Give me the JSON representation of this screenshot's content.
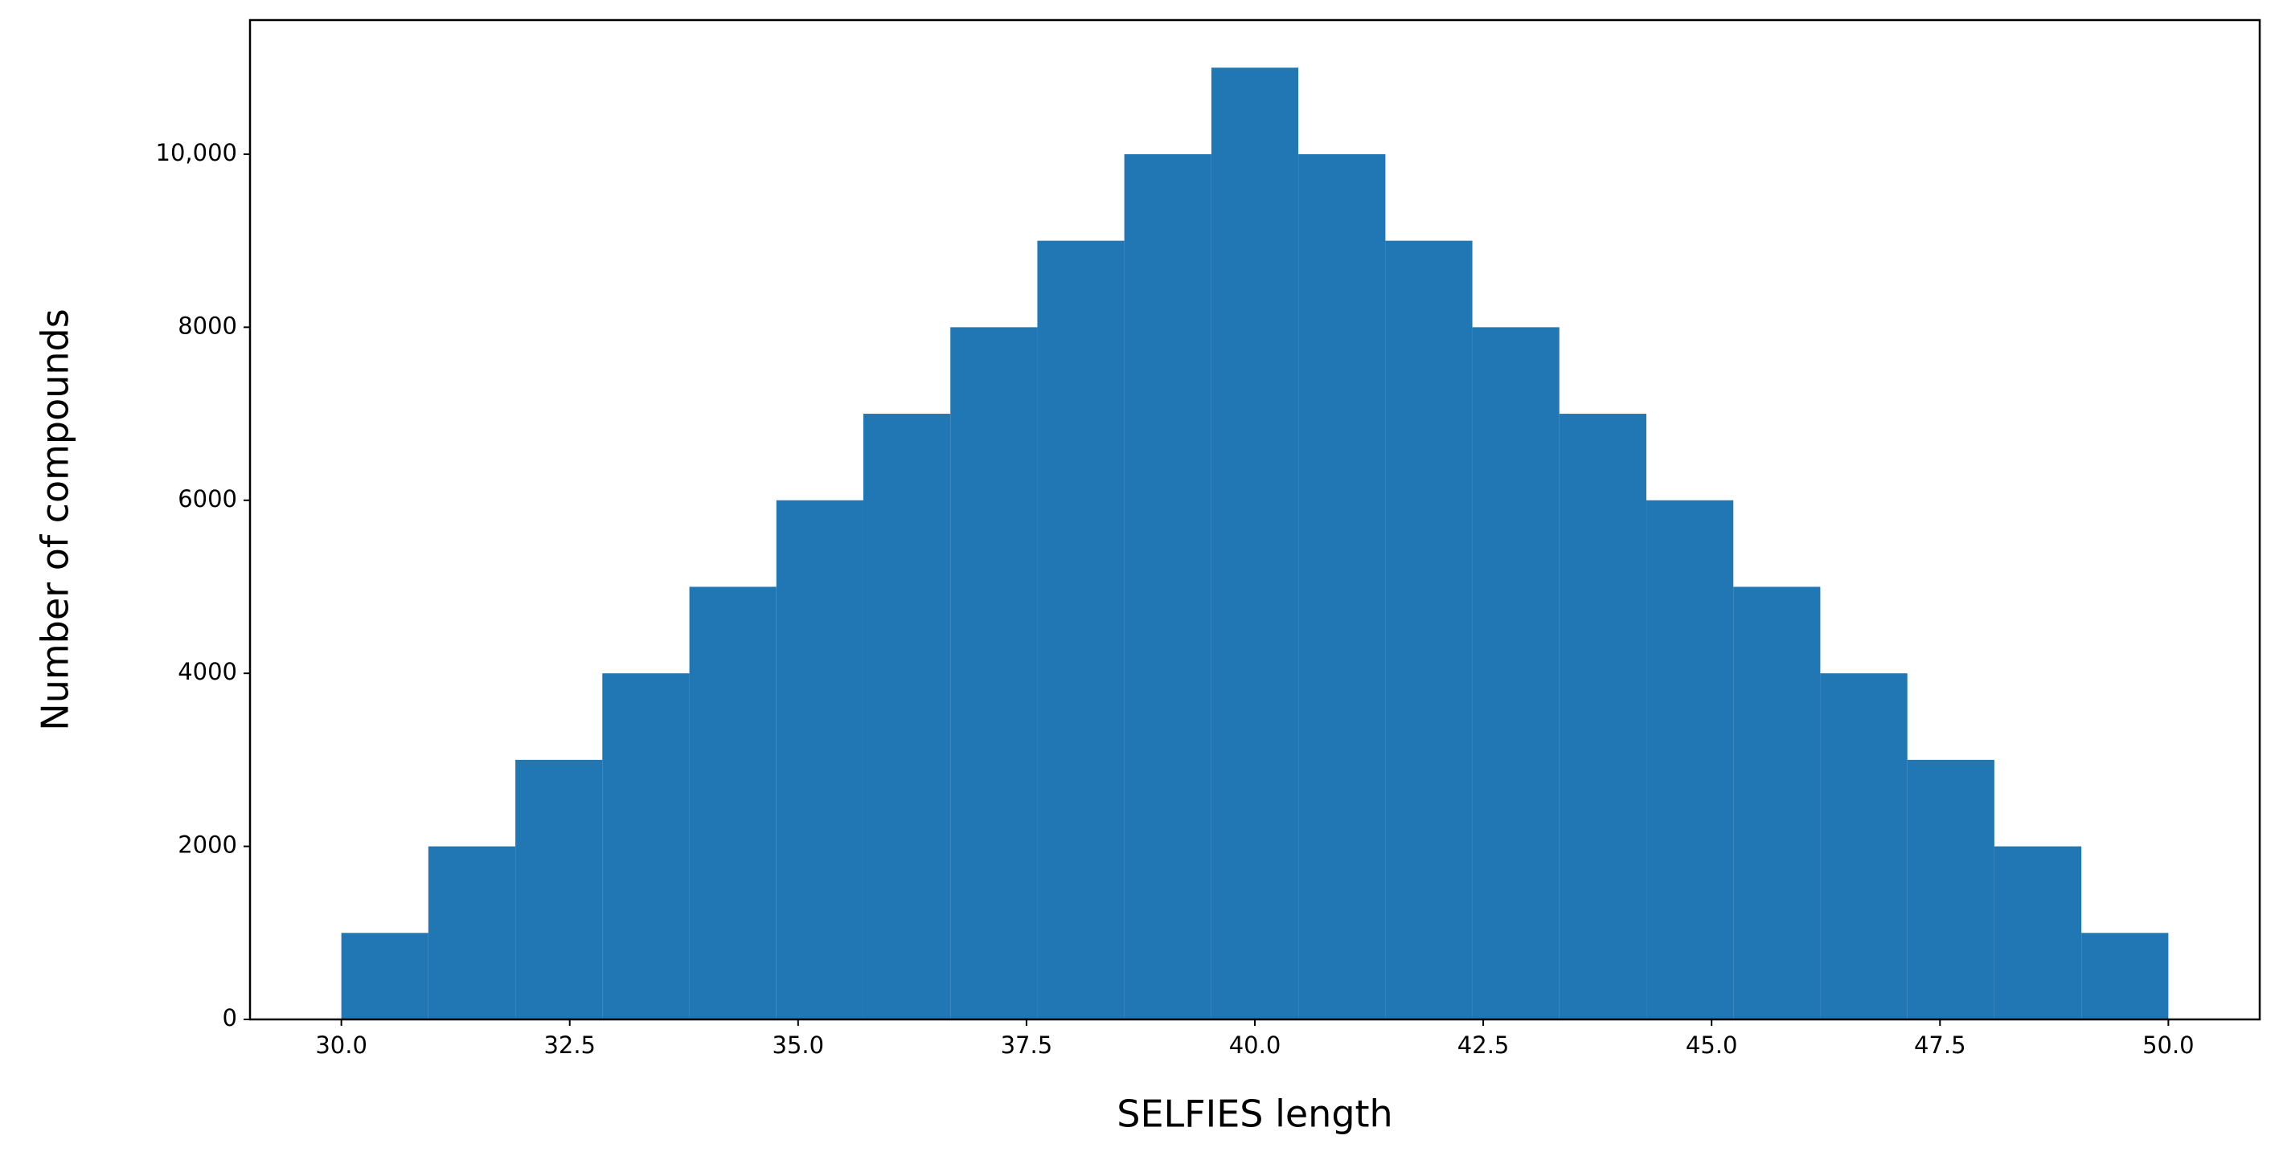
{
  "chart_data": {
    "type": "histogram",
    "x_label": "SELFIES length",
    "y_label": "Number of compounds",
    "bins": [
      30,
      30.952,
      31.905,
      32.857,
      33.81,
      34.762,
      35.714,
      36.667,
      37.619,
      38.571,
      39.524,
      40.476,
      41.429,
      42.381,
      43.333,
      44.286,
      45.238,
      46.19,
      47.143,
      48.095,
      49.048,
      50
    ],
    "values": [
      1000,
      2000,
      3000,
      4000,
      5000,
      6000,
      7000,
      8000,
      9000,
      10000,
      11000,
      10000,
      9000,
      8000,
      7000,
      6000,
      5000,
      4000,
      3000,
      2000,
      1000
    ],
    "color": "#2077b4",
    "xlim": [
      29,
      51
    ],
    "ylim": [
      0,
      11550
    ],
    "xticks": [
      {
        "value": 30,
        "label": "30.0"
      },
      {
        "value": 32.5,
        "label": "32.5"
      },
      {
        "value": 35,
        "label": "35.0"
      },
      {
        "value": 37.5,
        "label": "37.5"
      },
      {
        "value": 40,
        "label": "40.0"
      },
      {
        "value": 42.5,
        "label": "42.5"
      },
      {
        "value": 45,
        "label": "45.0"
      },
      {
        "value": 47.5,
        "label": "47.5"
      },
      {
        "value": 50,
        "label": "50.0"
      }
    ],
    "yticks": [
      0,
      2000,
      4000,
      6000,
      8000,
      {
        "value": 10000,
        "label": "10,000"
      }
    ]
  }
}
